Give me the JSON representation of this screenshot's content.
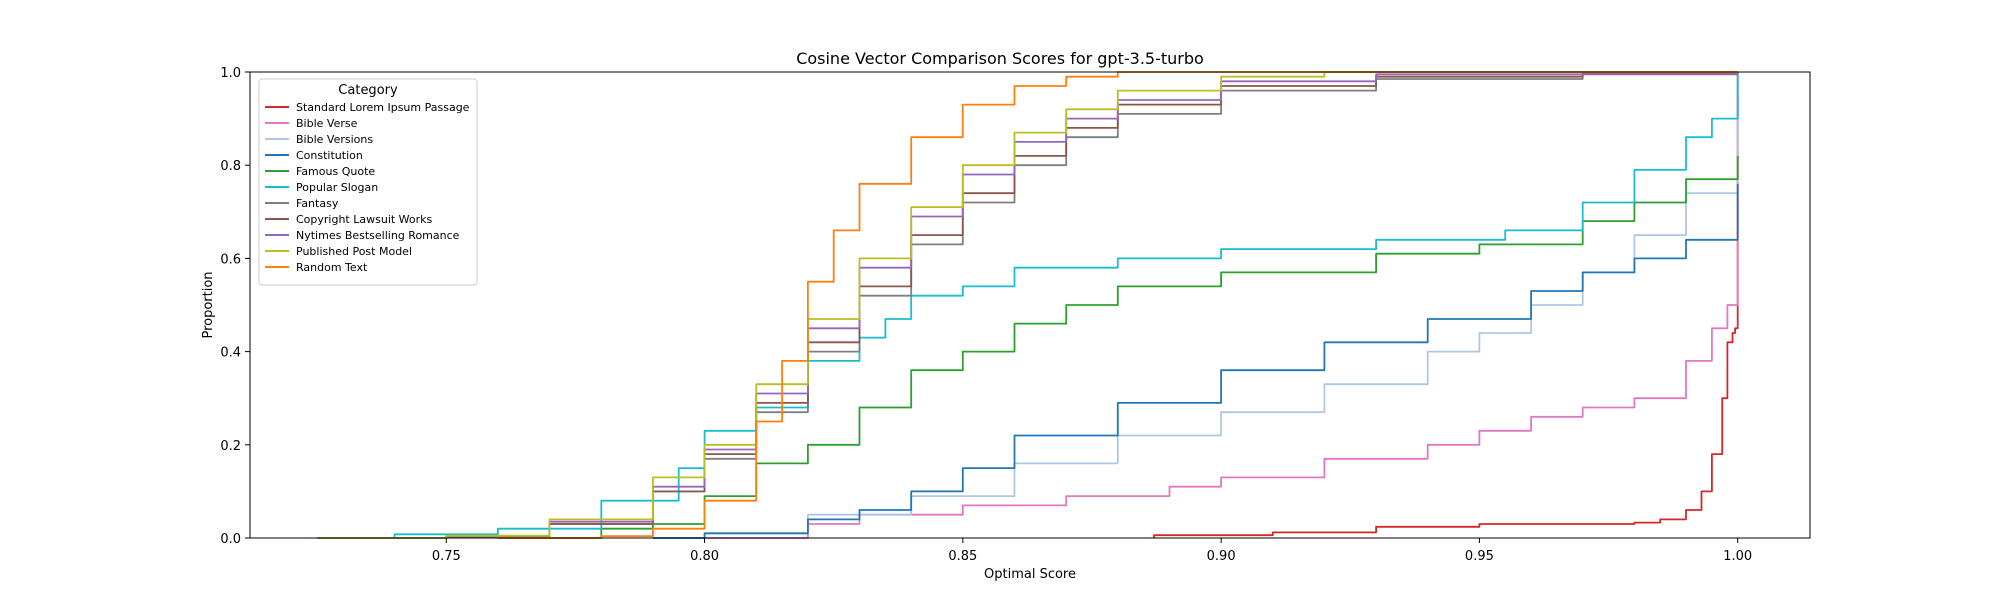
{
  "chart_data": {
    "type": "line",
    "title": "Cosine Vector Comparison Scores for gpt-3.5-turbo",
    "xlabel": "Optimal Score",
    "ylabel": "Proportion",
    "xlim": [
      0.712,
      1.014
    ],
    "ylim": [
      0,
      1
    ],
    "x_ticks": [
      "0.75",
      "0.80",
      "0.85",
      "0.90",
      "0.95",
      "1.00"
    ],
    "y_ticks": [
      "0.0",
      "0.2",
      "0.4",
      "0.6",
      "0.8",
      "1.0"
    ],
    "grid": false,
    "legend": {
      "title": "Category",
      "placement": "top-left"
    },
    "series": [
      {
        "name": "Standard Lorem Ipsum Passage",
        "color": "#d62728",
        "points": [
          [
            0.887,
            0.0
          ],
          [
            0.887,
            0.006
          ],
          [
            0.91,
            0.012
          ],
          [
            0.93,
            0.024
          ],
          [
            0.95,
            0.03
          ],
          [
            0.98,
            0.033
          ],
          [
            0.985,
            0.04
          ],
          [
            0.99,
            0.06
          ],
          [
            0.993,
            0.1
          ],
          [
            0.995,
            0.18
          ],
          [
            0.997,
            0.3
          ],
          [
            0.998,
            0.42
          ],
          [
            0.999,
            0.44
          ],
          [
            0.9995,
            0.45
          ],
          [
            1.0,
            0.45
          ],
          [
            1.0,
            1.0
          ]
        ]
      },
      {
        "name": "Bible Verse",
        "color": "#e377c2",
        "points": [
          [
            0.79,
            0.0
          ],
          [
            0.82,
            0.03
          ],
          [
            0.83,
            0.05
          ],
          [
            0.85,
            0.07
          ],
          [
            0.87,
            0.09
          ],
          [
            0.89,
            0.11
          ],
          [
            0.9,
            0.13
          ],
          [
            0.92,
            0.17
          ],
          [
            0.94,
            0.2
          ],
          [
            0.95,
            0.23
          ],
          [
            0.96,
            0.26
          ],
          [
            0.97,
            0.28
          ],
          [
            0.98,
            0.3
          ],
          [
            0.99,
            0.38
          ],
          [
            0.995,
            0.45
          ],
          [
            0.998,
            0.5
          ],
          [
            1.0,
            0.52
          ],
          [
            1.0,
            0.95
          ]
        ]
      },
      {
        "name": "Bible Versions",
        "color": "#aec7e8",
        "points": [
          [
            0.79,
            0.0
          ],
          [
            0.8,
            0.01
          ],
          [
            0.82,
            0.05
          ],
          [
            0.84,
            0.09
          ],
          [
            0.86,
            0.16
          ],
          [
            0.88,
            0.22
          ],
          [
            0.9,
            0.27
          ],
          [
            0.92,
            0.33
          ],
          [
            0.94,
            0.4
          ],
          [
            0.95,
            0.44
          ],
          [
            0.96,
            0.5
          ],
          [
            0.97,
            0.57
          ],
          [
            0.98,
            0.65
          ],
          [
            0.99,
            0.74
          ],
          [
            1.0,
            0.84
          ],
          [
            1.0,
            1.0
          ]
        ]
      },
      {
        "name": "Constitution",
        "color": "#1f77b4",
        "points": [
          [
            0.79,
            0.0
          ],
          [
            0.8,
            0.01
          ],
          [
            0.82,
            0.04
          ],
          [
            0.83,
            0.06
          ],
          [
            0.84,
            0.1
          ],
          [
            0.85,
            0.15
          ],
          [
            0.86,
            0.22
          ],
          [
            0.88,
            0.29
          ],
          [
            0.9,
            0.36
          ],
          [
            0.92,
            0.42
          ],
          [
            0.94,
            0.47
          ],
          [
            0.96,
            0.53
          ],
          [
            0.97,
            0.57
          ],
          [
            0.98,
            0.6
          ],
          [
            0.99,
            0.64
          ],
          [
            1.0,
            0.76
          ]
        ]
      },
      {
        "name": "Famous Quote",
        "color": "#2ca02c",
        "points": [
          [
            0.76,
            0.0
          ],
          [
            0.78,
            0.02
          ],
          [
            0.79,
            0.03
          ],
          [
            0.8,
            0.09
          ],
          [
            0.81,
            0.16
          ],
          [
            0.82,
            0.2
          ],
          [
            0.83,
            0.28
          ],
          [
            0.84,
            0.36
          ],
          [
            0.85,
            0.4
          ],
          [
            0.86,
            0.46
          ],
          [
            0.87,
            0.5
          ],
          [
            0.88,
            0.54
          ],
          [
            0.9,
            0.57
          ],
          [
            0.93,
            0.61
          ],
          [
            0.95,
            0.63
          ],
          [
            0.97,
            0.68
          ],
          [
            0.98,
            0.72
          ],
          [
            0.99,
            0.77
          ],
          [
            1.0,
            0.82
          ]
        ]
      },
      {
        "name": "Popular Slogan",
        "color": "#17becf",
        "points": [
          [
            0.74,
            0.0
          ],
          [
            0.74,
            0.008
          ],
          [
            0.76,
            0.02
          ],
          [
            0.78,
            0.08
          ],
          [
            0.795,
            0.15
          ],
          [
            0.8,
            0.23
          ],
          [
            0.81,
            0.28
          ],
          [
            0.82,
            0.38
          ],
          [
            0.83,
            0.43
          ],
          [
            0.835,
            0.47
          ],
          [
            0.84,
            0.52
          ],
          [
            0.85,
            0.54
          ],
          [
            0.86,
            0.58
          ],
          [
            0.88,
            0.6
          ],
          [
            0.9,
            0.62
          ],
          [
            0.93,
            0.64
          ],
          [
            0.955,
            0.66
          ],
          [
            0.97,
            0.72
          ],
          [
            0.98,
            0.79
          ],
          [
            0.99,
            0.86
          ],
          [
            0.995,
            0.9
          ],
          [
            1.0,
            0.93
          ],
          [
            1.0,
            1.0
          ]
        ]
      },
      {
        "name": "Fantasy",
        "color": "#7f7f7f",
        "points": [
          [
            0.725,
            0.0
          ],
          [
            0.75,
            0.003
          ],
          [
            0.77,
            0.03
          ],
          [
            0.79,
            0.1
          ],
          [
            0.8,
            0.17
          ],
          [
            0.81,
            0.27
          ],
          [
            0.82,
            0.4
          ],
          [
            0.83,
            0.52
          ],
          [
            0.84,
            0.63
          ],
          [
            0.85,
            0.72
          ],
          [
            0.86,
            0.8
          ],
          [
            0.87,
            0.86
          ],
          [
            0.88,
            0.91
          ],
          [
            0.9,
            0.96
          ],
          [
            0.93,
            0.985
          ],
          [
            0.97,
            0.997
          ],
          [
            1.0,
            1.0
          ]
        ]
      },
      {
        "name": "Copyright Lawsuit Works",
        "color": "#8c564b",
        "points": [
          [
            0.725,
            0.0
          ],
          [
            0.75,
            0.004
          ],
          [
            0.77,
            0.03
          ],
          [
            0.79,
            0.1
          ],
          [
            0.8,
            0.18
          ],
          [
            0.81,
            0.29
          ],
          [
            0.82,
            0.42
          ],
          [
            0.83,
            0.54
          ],
          [
            0.84,
            0.65
          ],
          [
            0.85,
            0.74
          ],
          [
            0.86,
            0.82
          ],
          [
            0.87,
            0.88
          ],
          [
            0.88,
            0.93
          ],
          [
            0.9,
            0.97
          ],
          [
            0.93,
            0.99
          ],
          [
            0.97,
            0.999
          ],
          [
            1.0,
            1.0
          ]
        ]
      },
      {
        "name": "Nytimes Bestselling Romance",
        "color": "#9467bd",
        "points": [
          [
            0.725,
            0.0
          ],
          [
            0.75,
            0.004
          ],
          [
            0.77,
            0.035
          ],
          [
            0.79,
            0.11
          ],
          [
            0.8,
            0.19
          ],
          [
            0.81,
            0.31
          ],
          [
            0.82,
            0.45
          ],
          [
            0.83,
            0.58
          ],
          [
            0.84,
            0.69
          ],
          [
            0.85,
            0.78
          ],
          [
            0.86,
            0.85
          ],
          [
            0.87,
            0.9
          ],
          [
            0.88,
            0.94
          ],
          [
            0.9,
            0.98
          ],
          [
            0.93,
            0.995
          ],
          [
            1.0,
            1.0
          ]
        ]
      },
      {
        "name": "Published Post Model",
        "color": "#bcbd22",
        "points": [
          [
            0.725,
            0.0
          ],
          [
            0.75,
            0.005
          ],
          [
            0.77,
            0.04
          ],
          [
            0.79,
            0.13
          ],
          [
            0.8,
            0.2
          ],
          [
            0.81,
            0.33
          ],
          [
            0.82,
            0.47
          ],
          [
            0.83,
            0.6
          ],
          [
            0.84,
            0.71
          ],
          [
            0.85,
            0.8
          ],
          [
            0.86,
            0.87
          ],
          [
            0.87,
            0.92
          ],
          [
            0.88,
            0.96
          ],
          [
            0.9,
            0.99
          ],
          [
            0.92,
            1.0
          ],
          [
            1.0,
            1.0
          ]
        ]
      },
      {
        "name": "Random Text",
        "color": "#ff7f0e",
        "points": [
          [
            0.76,
            0.0
          ],
          [
            0.78,
            0.004
          ],
          [
            0.79,
            0.02
          ],
          [
            0.8,
            0.08
          ],
          [
            0.81,
            0.25
          ],
          [
            0.815,
            0.38
          ],
          [
            0.82,
            0.55
          ],
          [
            0.825,
            0.66
          ],
          [
            0.83,
            0.76
          ],
          [
            0.84,
            0.86
          ],
          [
            0.85,
            0.93
          ],
          [
            0.86,
            0.97
          ],
          [
            0.87,
            0.99
          ],
          [
            0.88,
            1.0
          ],
          [
            1.0,
            1.0
          ]
        ]
      }
    ]
  }
}
